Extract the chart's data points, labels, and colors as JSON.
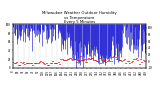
{
  "title": "Milwaukee Weather Outdoor Humidity\nvs Temperature\nEvery 5 Minutes",
  "title_fontsize": 2.8,
  "background_color": "#ffffff",
  "plot_bg_color": "#ffffff",
  "grid_color": "#bbbbbb",
  "humidity_color": "#0000cc",
  "temperature_color": "#cc0000",
  "ylim_left": [
    0,
    100
  ],
  "ylim_right": [
    -20,
    110
  ],
  "tick_fontsize": 2.0,
  "n_points": 500,
  "seed": 42
}
